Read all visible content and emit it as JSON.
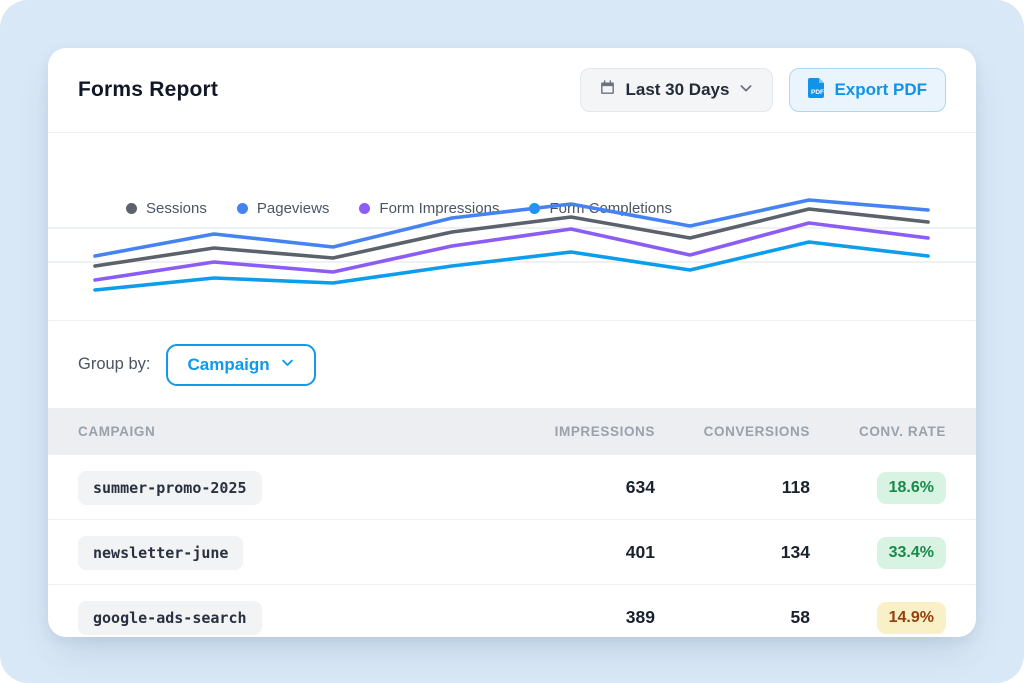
{
  "page": {
    "bg_color": "#d9e8f6",
    "card_color": "#ffffff"
  },
  "header": {
    "title": "Forms Report",
    "date_range_button": "Last 30 Days",
    "export_button": "Export PDF",
    "export_accent": "#1193e8"
  },
  "legend": [
    {
      "label": "Sessions",
      "color": "#5c626b"
    },
    {
      "label": "Pageviews",
      "color": "#4583f2"
    },
    {
      "label": "Form Impressions",
      "color": "#8b5cf6"
    },
    {
      "label": "Form Completions",
      "color": "#0c9ded"
    }
  ],
  "chart_data": {
    "type": "line",
    "title": "",
    "xlabel": "",
    "ylabel": "",
    "axes_visible": false,
    "grid": "two faint horizontal gridlines",
    "x": [
      1,
      2,
      3,
      4,
      5,
      6,
      7,
      8
    ],
    "units": "relative scale 0-100 (no axis tick labels shown in UI)",
    "ylim": [
      0,
      100
    ],
    "legend_position": "top-left",
    "series": [
      {
        "name": "Sessions",
        "color": "#5c626b",
        "values": [
          24,
          42,
          32,
          58,
          73,
          52,
          81,
          68
        ]
      },
      {
        "name": "Pageviews",
        "color": "#4583f2",
        "values": [
          34,
          56,
          43,
          72,
          86,
          64,
          90,
          80
        ]
      },
      {
        "name": "Form Impressions",
        "color": "#8b5cf6",
        "values": [
          10,
          28,
          18,
          44,
          61,
          35,
          67,
          52
        ]
      },
      {
        "name": "Form Completions",
        "color": "#0c9ded",
        "values": [
          0,
          12,
          7,
          24,
          38,
          20,
          48,
          34
        ]
      }
    ]
  },
  "group_by": {
    "label": "Group by:",
    "selected": "Campaign"
  },
  "table": {
    "columns": [
      "CAMPAIGN",
      "IMPRESSIONS",
      "CONVERSIONS",
      "CONV. RATE"
    ],
    "rows": [
      {
        "campaign": "summer-promo-2025",
        "impressions": "634",
        "conversions": "118",
        "conv_rate": "18.6%",
        "rate_tone": "green"
      },
      {
        "campaign": "newsletter-june",
        "impressions": "401",
        "conversions": "134",
        "conv_rate": "33.4%",
        "rate_tone": "green"
      },
      {
        "campaign": "google-ads-search",
        "impressions": "389",
        "conversions": "58",
        "conv_rate": "14.9%",
        "rate_tone": "amber"
      }
    ]
  }
}
